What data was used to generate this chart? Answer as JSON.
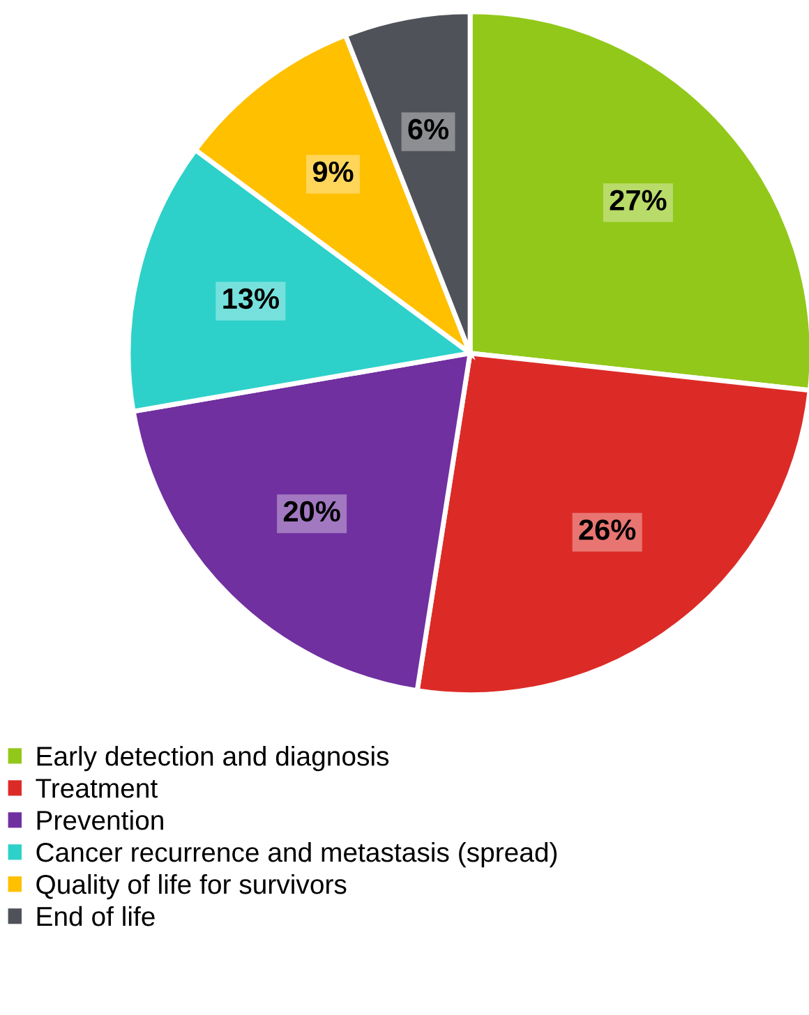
{
  "chart_data": {
    "type": "pie",
    "categories": [
      "Early detection and diagnosis",
      "Treatment",
      "Prevention",
      "Cancer recurrence and metastasis (spread)",
      "Quality of life for survivors",
      "End of life"
    ],
    "values": [
      27,
      26,
      20,
      13,
      9,
      6
    ],
    "colors": [
      "#92c81a",
      "#dc2b27",
      "#7030a0",
      "#2dd1c9",
      "#ffc000",
      "#4f5258"
    ],
    "value_labels": [
      "27%",
      "26%",
      "20%",
      "13%",
      "9%",
      "6%"
    ],
    "legend": "bottom"
  }
}
